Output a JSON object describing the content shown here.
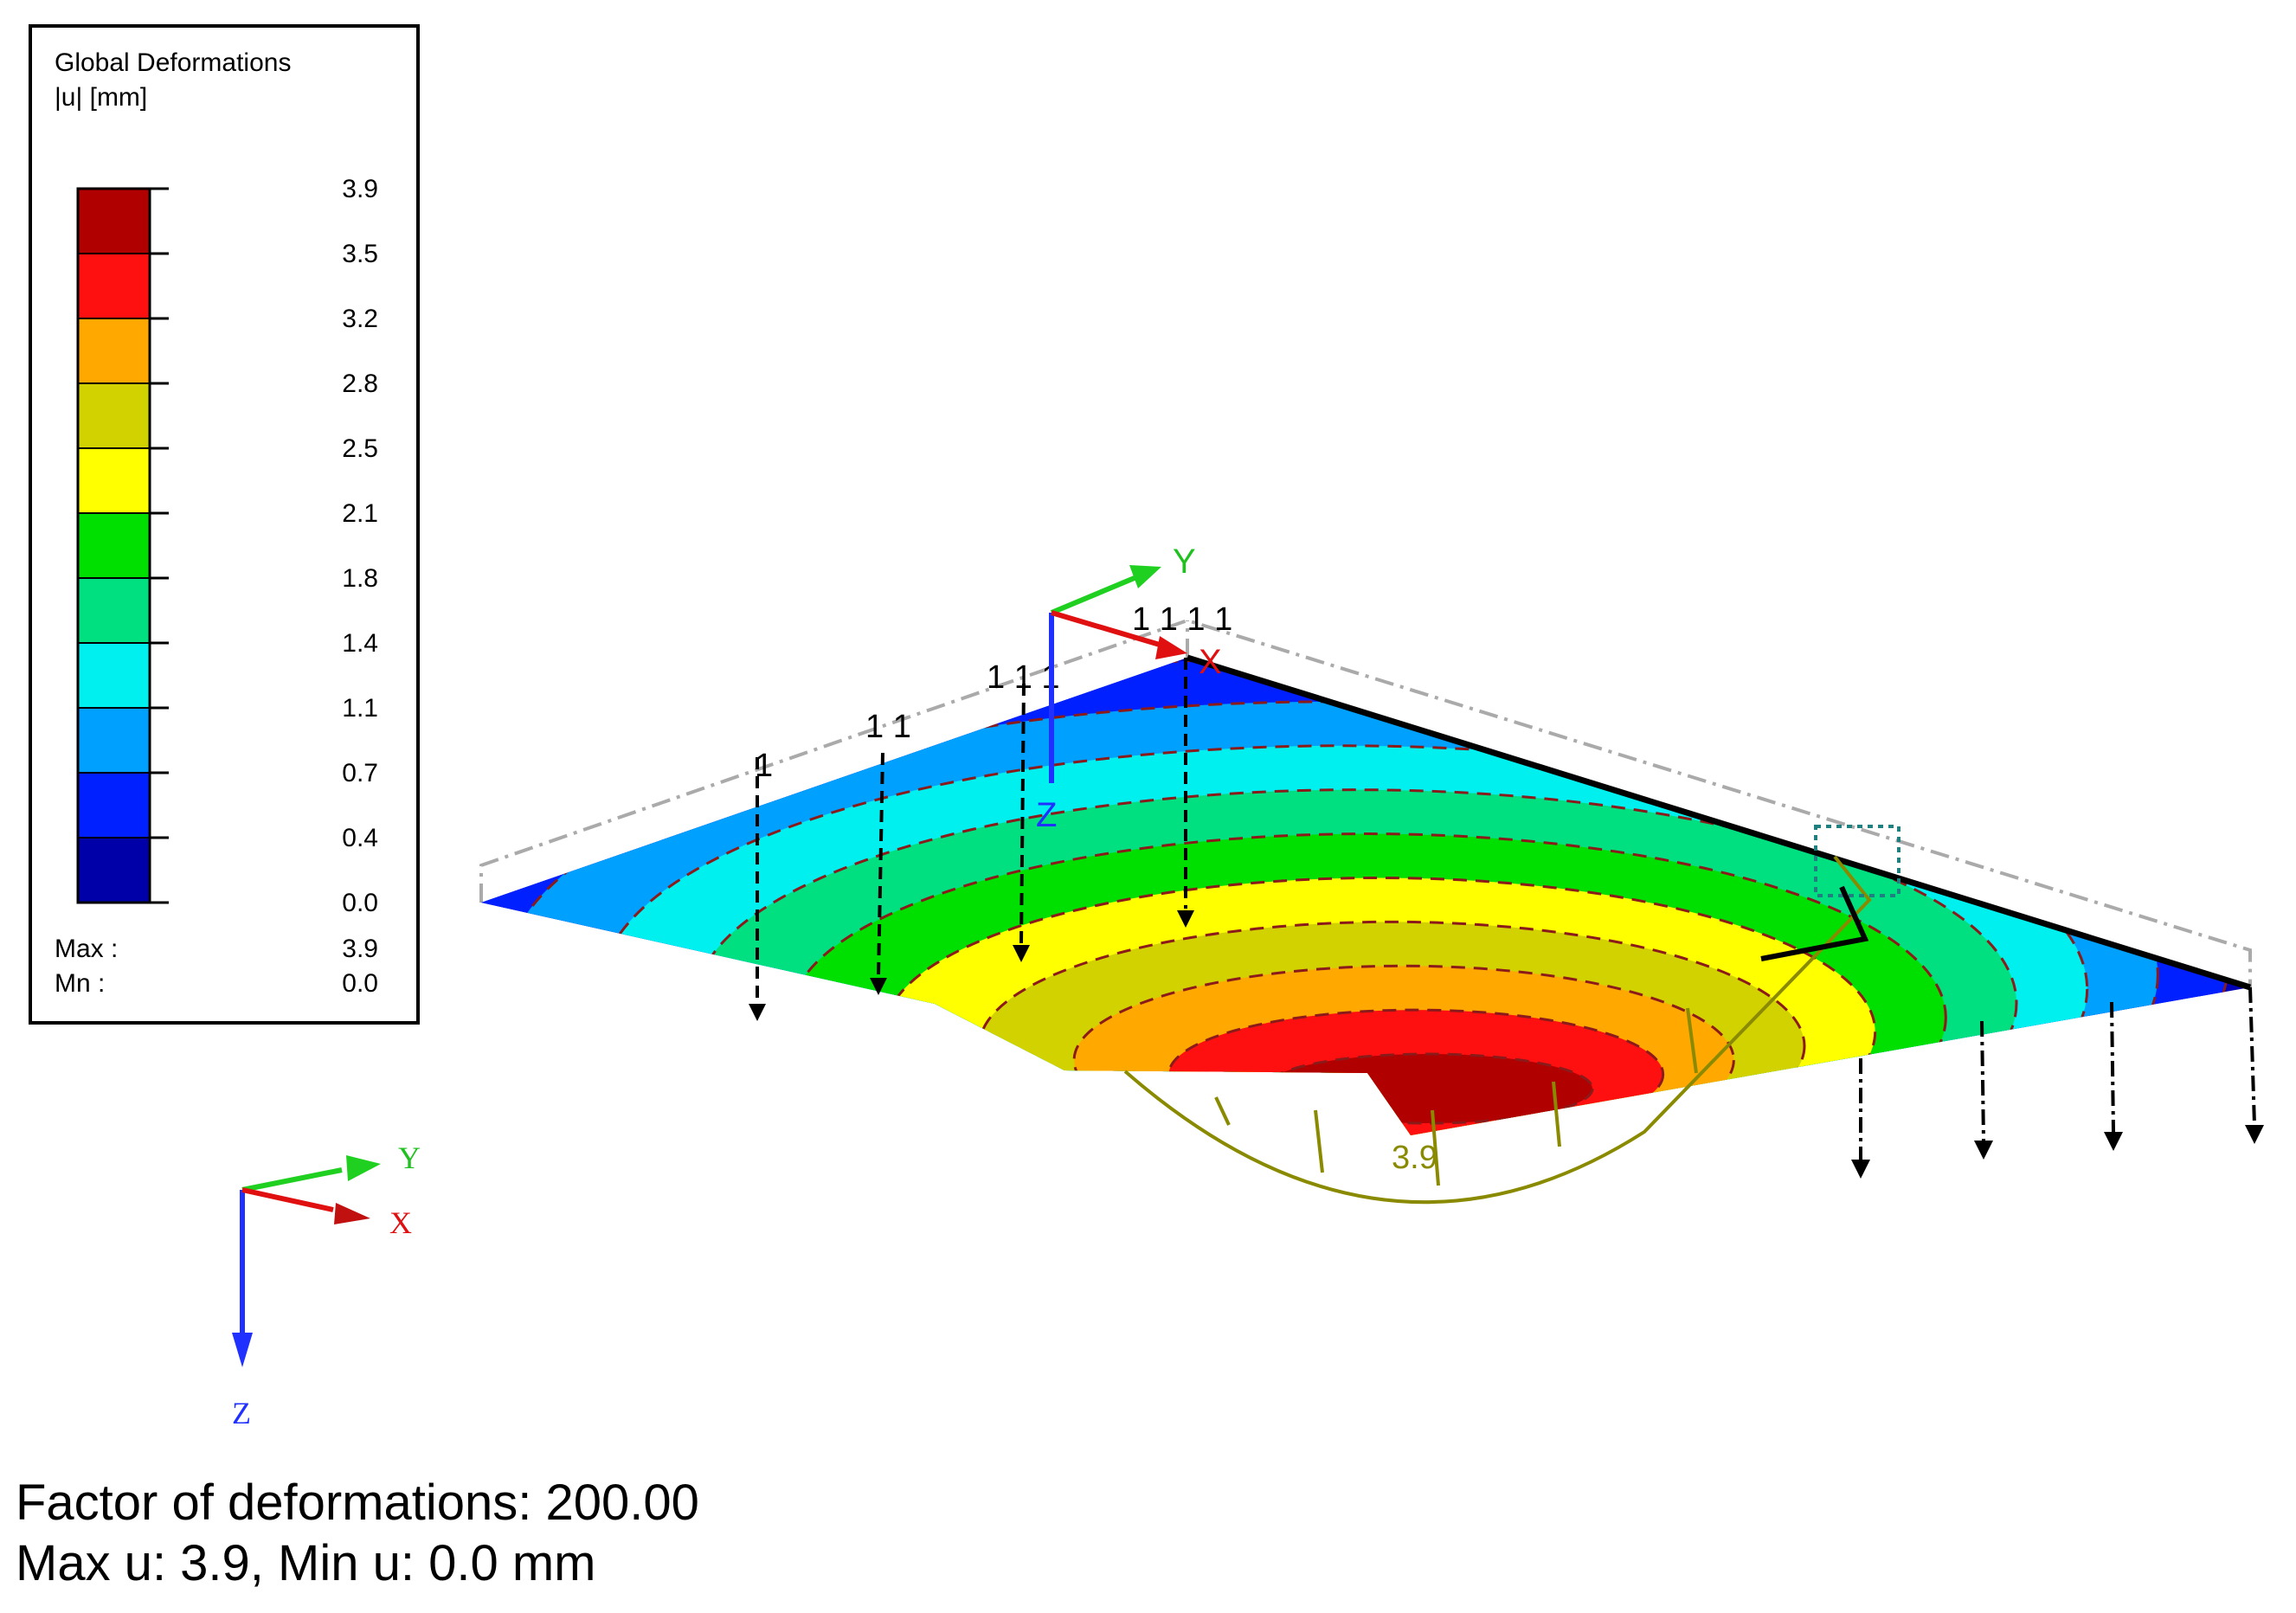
{
  "legend": {
    "title": "Global Deformations",
    "unit": "|u| [mm]",
    "levels": [
      "3.9",
      "3.5",
      "3.2",
      "2.8",
      "2.5",
      "2.1",
      "1.8",
      "1.4",
      "1.1",
      "0.7",
      "0.4",
      "0.0"
    ],
    "bands": [
      "#b00000",
      "#ff1010",
      "#ffa800",
      "#d2d200",
      "#ffff00",
      "#00e000",
      "#00e080",
      "#00f0f0",
      "#00a0ff",
      "#0020ff",
      "#0000a8"
    ],
    "max_label": "Max :",
    "max_value": "3.9",
    "min_label": "Mn :",
    "min_value": "0.0"
  },
  "plate": {
    "contour_colors": [
      "#0020ff",
      "#00a0ff",
      "#00f0f0",
      "#00e080",
      "#00e000",
      "#ffff00",
      "#d2d200",
      "#ffa800",
      "#ff1010",
      "#b00000"
    ],
    "max_label": "3.9",
    "load_labels": [
      "1",
      "1 1",
      "1 1 1",
      "1 1 1 1"
    ]
  },
  "local_axes": {
    "x": "X",
    "y": "Y",
    "z": "Z"
  },
  "global_axes": {
    "x": "X",
    "y": "Y",
    "z": "Z"
  },
  "footer": {
    "line1": "Factor of deformations: 200.00",
    "line2": "Max u: 3.9, Min u: 0.0 mm"
  }
}
